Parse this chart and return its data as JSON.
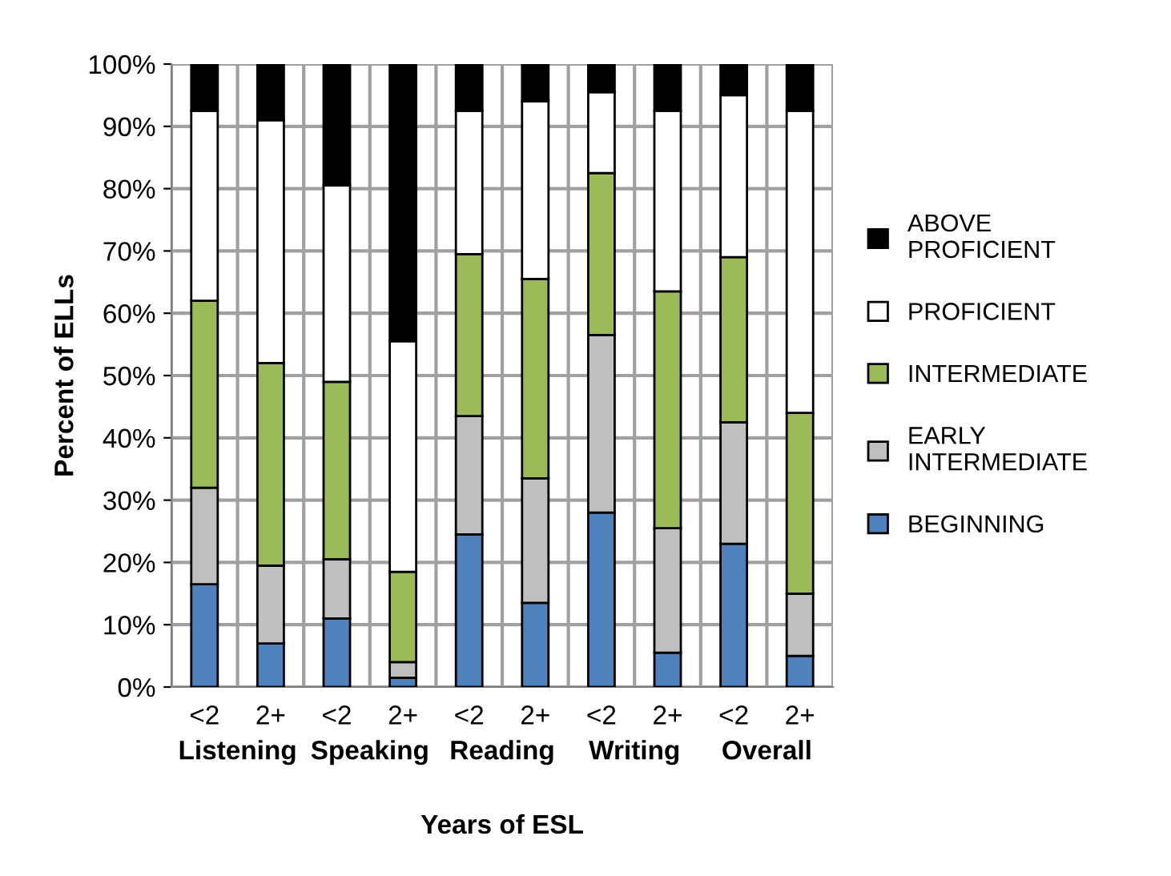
{
  "chart_data": {
    "type": "bar",
    "stacked": true,
    "xlabel": "Years of ESL",
    "ylabel": "Percent of ELLs",
    "categories": [
      "<2",
      "2+",
      "<2",
      "2+",
      "<2",
      "2+",
      "<2",
      "2+",
      "<2",
      "2+"
    ],
    "series": [
      {
        "name": "BEGINNING",
        "color": "#4f81bd",
        "values": [
          16.5,
          7,
          11,
          1.5,
          24.5,
          13.5,
          28,
          5.5,
          23,
          5
        ]
      },
      {
        "name": "EARLY\nINTERMEDIATE",
        "color": "#bfbfbf",
        "values": [
          15.5,
          12.5,
          9.5,
          2.5,
          19,
          20,
          28.5,
          20,
          19.5,
          10
        ]
      },
      {
        "name": "INTERMEDIATE",
        "color": "#9bbb59",
        "values": [
          30,
          32.5,
          28.5,
          14.5,
          26,
          32,
          26,
          38,
          26.5,
          29
        ]
      },
      {
        "name": "PROFICIENT",
        "color": "#ffffff",
        "values": [
          30.5,
          39,
          31.5,
          37,
          23,
          28.5,
          13,
          29,
          26,
          48.5
        ]
      },
      {
        "name": "ABOVE\nPROFICIENT",
        "color": "#000000",
        "values": [
          7.5,
          9,
          19.5,
          44.5,
          7.5,
          6,
          4.5,
          7.5,
          5,
          7.5
        ]
      }
    ],
    "annotations": [
      "Listening",
      "Speaking",
      "Reading",
      "Writing",
      "Overall"
    ],
    "ylim": [
      0,
      100
    ],
    "yticks": [
      {
        "value": 0,
        "label": "0%"
      },
      {
        "value": 10,
        "label": "10%"
      },
      {
        "value": 20,
        "label": "20%"
      },
      {
        "value": 30,
        "label": "30%"
      },
      {
        "value": 40,
        "label": "40%"
      },
      {
        "value": 50,
        "label": "50%"
      },
      {
        "value": 60,
        "label": "60%"
      },
      {
        "value": 70,
        "label": "70%"
      },
      {
        "value": 80,
        "label": "80%"
      },
      {
        "value": 90,
        "label": "90%"
      },
      {
        "value": 100,
        "label": "100%"
      }
    ],
    "grid": true,
    "legend": "right"
  }
}
